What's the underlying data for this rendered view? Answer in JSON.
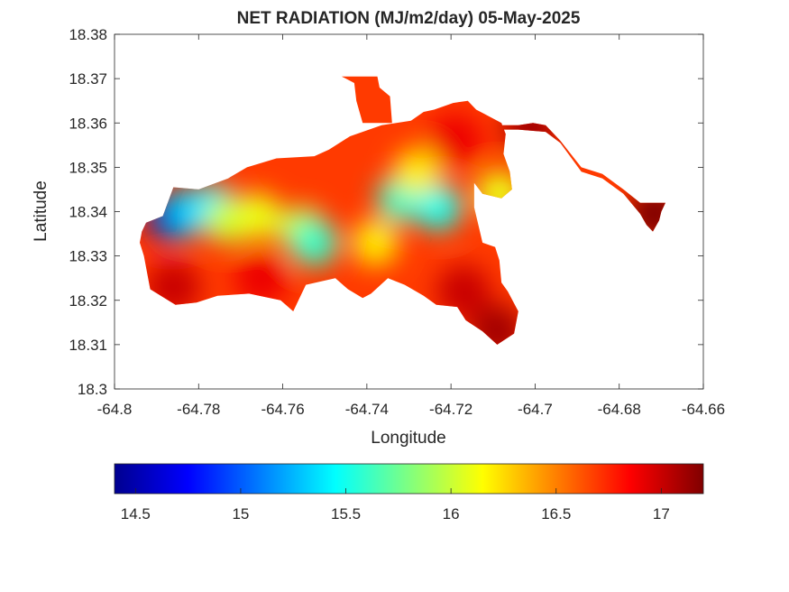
{
  "chart_data": {
    "type": "heatmap",
    "title": "NET RADIATION (MJ/m2/day) 05-May-2025",
    "xlabel": "Longitude",
    "ylabel": "Latitude",
    "xlim": [
      -64.8,
      -64.66
    ],
    "ylim": [
      18.3,
      18.38
    ],
    "x_ticks": [
      -64.8,
      -64.78,
      -64.76,
      -64.74,
      -64.72,
      -64.7,
      -64.68,
      -64.66
    ],
    "x_tick_labels": [
      "-64.8",
      "-64.78",
      "-64.76",
      "-64.74",
      "-64.72",
      "-64.7",
      "-64.68",
      "-64.66"
    ],
    "y_ticks": [
      18.3,
      18.31,
      18.32,
      18.33,
      18.34,
      18.35,
      18.36,
      18.37,
      18.38
    ],
    "y_tick_labels": [
      "18.3",
      "18.31",
      "18.32",
      "18.33",
      "18.34",
      "18.35",
      "18.36",
      "18.37",
      "18.38"
    ],
    "colorbar": {
      "colormap": "jet",
      "orientation": "horizontal",
      "placement": "bottom",
      "range": [
        14.4,
        17.2
      ],
      "ticks": [
        14.5,
        15,
        15.5,
        16,
        16.5,
        17
      ],
      "tick_labels": [
        "14.5",
        "15",
        "15.5",
        "16",
        "16.5",
        "17"
      ]
    },
    "land_outline": [
      [
        -64.7935,
        18.3355
      ],
      [
        -64.7925,
        18.3375
      ],
      [
        -64.7885,
        18.339
      ],
      [
        -64.786,
        18.3455
      ],
      [
        -64.78,
        18.345
      ],
      [
        -64.773,
        18.3475
      ],
      [
        -64.7685,
        18.35
      ],
      [
        -64.7615,
        18.352
      ],
      [
        -64.7525,
        18.3525
      ],
      [
        -64.749,
        18.354
      ],
      [
        -64.744,
        18.357
      ],
      [
        -64.7365,
        18.3595
      ],
      [
        -64.7295,
        18.3605
      ],
      [
        -64.7265,
        18.3625
      ],
      [
        -64.724,
        18.363
      ],
      [
        -64.7195,
        18.3645
      ],
      [
        -64.716,
        18.365
      ],
      [
        -64.714,
        18.363
      ],
      [
        -64.712,
        18.362
      ],
      [
        -64.708,
        18.36
      ],
      [
        -64.707,
        18.3575
      ],
      [
        -64.7075,
        18.353
      ],
      [
        -64.706,
        18.349
      ],
      [
        -64.7055,
        18.345
      ],
      [
        -64.708,
        18.343
      ],
      [
        -64.7125,
        18.344
      ],
      [
        -64.7145,
        18.3465
      ],
      [
        -64.7145,
        18.341
      ],
      [
        -64.7135,
        18.337
      ],
      [
        -64.7125,
        18.333
      ],
      [
        -64.7095,
        18.332
      ],
      [
        -64.7085,
        18.329
      ],
      [
        -64.708,
        18.324
      ],
      [
        -64.7065,
        18.322
      ],
      [
        -64.704,
        18.3175
      ],
      [
        -64.705,
        18.3125
      ],
      [
        -64.709,
        18.31
      ],
      [
        -64.7125,
        18.313
      ],
      [
        -64.7165,
        18.3155
      ],
      [
        -64.7185,
        18.3185
      ],
      [
        -64.7235,
        18.319
      ],
      [
        -64.7265,
        18.321
      ],
      [
        -64.731,
        18.3235
      ],
      [
        -64.735,
        18.325
      ],
      [
        -64.739,
        18.3215
      ],
      [
        -64.741,
        18.3205
      ],
      [
        -64.7445,
        18.3225
      ],
      [
        -64.7475,
        18.325
      ],
      [
        -64.7545,
        18.3235
      ],
      [
        -64.756,
        18.3205
      ],
      [
        -64.7575,
        18.3175
      ],
      [
        -64.7605,
        18.32
      ],
      [
        -64.768,
        18.3215
      ],
      [
        -64.7755,
        18.321
      ],
      [
        -64.7805,
        18.3195
      ],
      [
        -64.7855,
        18.319
      ],
      [
        -64.7915,
        18.3225
      ],
      [
        -64.793,
        18.33
      ],
      [
        -64.794,
        18.333
      ]
    ],
    "land_outline_east": [
      [
        -64.7145,
        18.3595
      ],
      [
        -64.7095,
        18.3595
      ],
      [
        -64.704,
        18.3595
      ],
      [
        -64.7005,
        18.36
      ],
      [
        -64.6975,
        18.3595
      ],
      [
        -64.694,
        18.356
      ],
      [
        -64.689,
        18.35
      ],
      [
        -64.684,
        18.3485
      ],
      [
        -64.679,
        18.345
      ],
      [
        -64.675,
        18.342
      ],
      [
        -64.669,
        18.342
      ],
      [
        -64.67,
        18.34
      ],
      [
        -64.6705,
        18.338
      ],
      [
        -64.672,
        18.3355
      ],
      [
        -64.6735,
        18.337
      ],
      [
        -64.675,
        18.3395
      ],
      [
        -64.679,
        18.344
      ],
      [
        -64.684,
        18.3475
      ],
      [
        -64.689,
        18.349
      ],
      [
        -64.694,
        18.3555
      ],
      [
        -64.6975,
        18.358
      ],
      [
        -64.704,
        18.3585
      ],
      [
        -64.7095,
        18.3585
      ]
    ],
    "land_outline_north": [
      [
        -64.741,
        18.36
      ],
      [
        -64.7425,
        18.365
      ],
      [
        -64.743,
        18.369
      ],
      [
        -64.746,
        18.3705
      ],
      [
        -64.7375,
        18.3705
      ],
      [
        -64.737,
        18.368
      ],
      [
        -64.7345,
        18.366
      ],
      [
        -64.734,
        18.36
      ]
    ],
    "value_blobs": [
      {
        "lon": -64.7865,
        "lat": 18.3385,
        "value": 14.6
      },
      {
        "lon": -64.782,
        "lat": 18.34,
        "value": 15.3
      },
      {
        "lon": -64.7765,
        "lat": 18.341,
        "value": 15.4
      },
      {
        "lon": -64.773,
        "lat": 18.338,
        "value": 16.0
      },
      {
        "lon": -64.766,
        "lat": 18.339,
        "value": 16.1
      },
      {
        "lon": -64.7555,
        "lat": 18.336,
        "value": 16.0
      },
      {
        "lon": -64.7525,
        "lat": 18.333,
        "value": 15.6
      },
      {
        "lon": -64.738,
        "lat": 18.333,
        "value": 16.2
      },
      {
        "lon": -64.732,
        "lat": 18.343,
        "value": 15.6
      },
      {
        "lon": -64.723,
        "lat": 18.341,
        "value": 15.5
      },
      {
        "lon": -64.728,
        "lat": 18.349,
        "value": 16.2
      },
      {
        "lon": -64.719,
        "lat": 18.356,
        "value": 16.9
      },
      {
        "lon": -64.717,
        "lat": 18.322,
        "value": 17.0
      },
      {
        "lon": -64.709,
        "lat": 18.313,
        "value": 17.1
      },
      {
        "lon": -64.786,
        "lat": 18.323,
        "value": 17.0
      },
      {
        "lon": -64.765,
        "lat": 18.325,
        "value": 16.9
      },
      {
        "lon": -64.701,
        "lat": 18.359,
        "value": 17.1
      },
      {
        "lon": -64.6715,
        "lat": 18.3395,
        "value": 17.2
      },
      {
        "lon": -64.7085,
        "lat": 18.344,
        "value": 16.1
      }
    ]
  }
}
